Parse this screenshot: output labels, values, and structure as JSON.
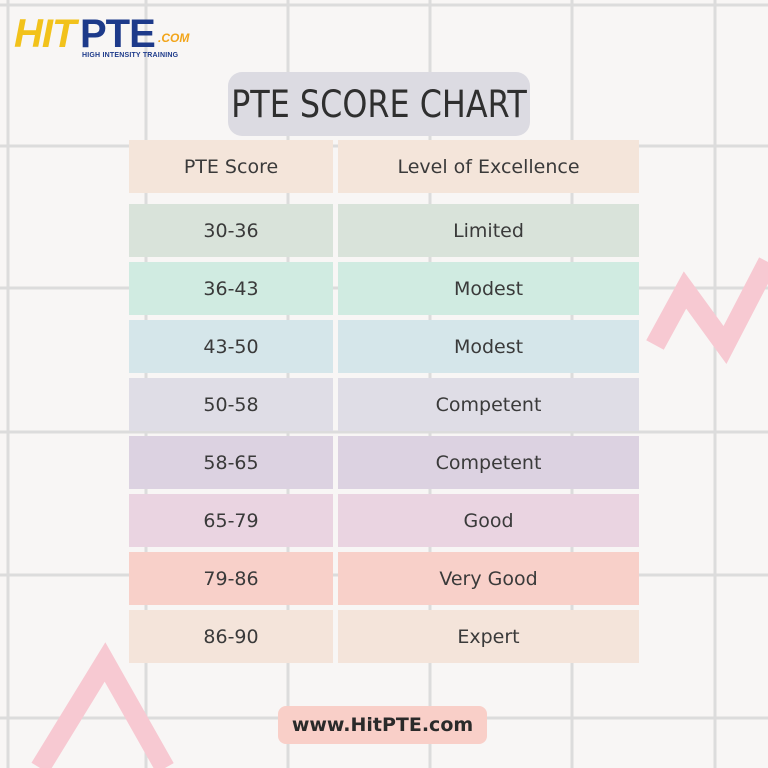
{
  "logo": {
    "hit": "HIT",
    "pte": "PTE",
    "com": ".COM",
    "tagline": "HIGH INTENSITY TRAINING"
  },
  "title": "PTE SCORE CHART",
  "table": {
    "headers": [
      "PTE Score",
      "Level of Excellence"
    ],
    "header_color": "#f4e5da",
    "rows": [
      {
        "score": "30-36",
        "level": "Limited",
        "color": "#d9e3da"
      },
      {
        "score": "36-43",
        "level": "Modest",
        "color": "#d0ebe1"
      },
      {
        "score": "43-50",
        "level": "Modest",
        "color": "#d5e6ea"
      },
      {
        "score": "50-58",
        "level": "Competent",
        "color": "#dfdde6"
      },
      {
        "score": "58-65",
        "level": "Competent",
        "color": "#dcd2e1"
      },
      {
        "score": "65-79",
        "level": "Good",
        "color": "#ead4e1"
      },
      {
        "score": "79-86",
        "level": "Very Good",
        "color": "#f8d0c9"
      },
      {
        "score": "86-90",
        "level": "Expert",
        "color": "#f4e4da"
      }
    ]
  },
  "footer_url": "www.HitPTE.com",
  "colors": {
    "background": "#f8f6f5",
    "grid_line": "#dcdcdc",
    "zigzag": "#f7c9d2",
    "title_bg": "#dcdbe2",
    "url_bg": "#f9cfc8",
    "logo_yellow": "#f2c21b",
    "logo_blue": "#1d3a8a"
  }
}
